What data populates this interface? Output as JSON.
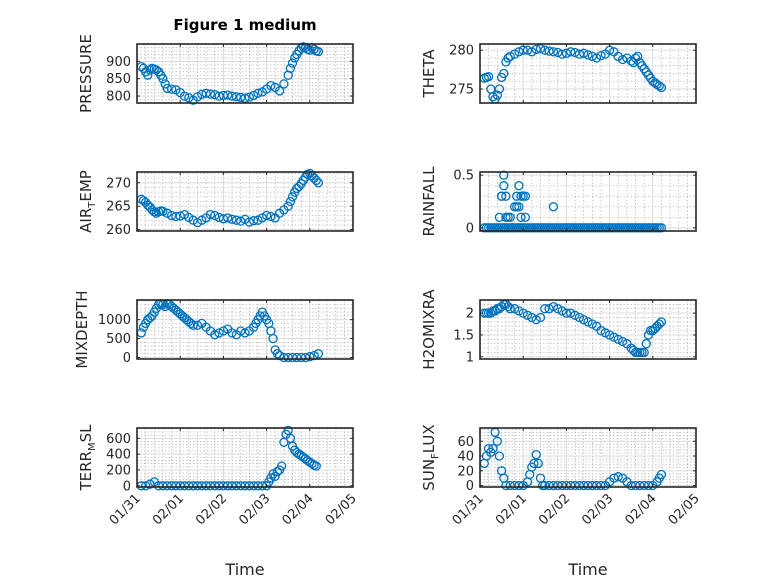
{
  "figure_title": "Figure 1 medium",
  "colors": {
    "marker": "#0072BD",
    "axis": "#262626"
  },
  "chart_data": [
    {
      "type": "scatter",
      "id": "pressure",
      "ylabel": "PRESSURE",
      "title": "Figure 1 medium",
      "ylim": [
        780,
        950
      ],
      "yticks": [
        800,
        850,
        900
      ],
      "ytick_labels": [
        "800",
        "850",
        "900"
      ],
      "xlim": [
        0,
        5
      ],
      "xticks": [
        0,
        1,
        2,
        3,
        4,
        5
      ],
      "xtick_labels": [
        "01/31",
        "02/01",
        "02/02",
        "02/03",
        "02/04",
        "02/05"
      ],
      "xlabel": "Time",
      "x": [
        0.1,
        0.15,
        0.2,
        0.25,
        0.3,
        0.35,
        0.4,
        0.45,
        0.5,
        0.55,
        0.6,
        0.65,
        0.7,
        0.8,
        0.9,
        1.0,
        1.1,
        1.2,
        1.3,
        1.4,
        1.5,
        1.6,
        1.7,
        1.8,
        1.9,
        2.0,
        2.1,
        2.2,
        2.3,
        2.4,
        2.5,
        2.6,
        2.7,
        2.8,
        2.9,
        3.0,
        3.1,
        3.2,
        3.3,
        3.4,
        3.5,
        3.55,
        3.6,
        3.65,
        3.7,
        3.75,
        3.8,
        3.85,
        3.9,
        3.95,
        4.0,
        4.05,
        4.1,
        4.15,
        4.2
      ],
      "y": [
        885,
        880,
        870,
        860,
        875,
        880,
        878,
        875,
        870,
        860,
        850,
        835,
        822,
        820,
        818,
        810,
        800,
        795,
        788,
        798,
        805,
        808,
        806,
        804,
        800,
        802,
        803,
        800,
        798,
        796,
        794,
        797,
        802,
        808,
        812,
        820,
        830,
        825,
        815,
        835,
        860,
        880,
        895,
        910,
        920,
        930,
        938,
        942,
        940,
        935,
        932,
        940,
        935,
        930,
        928
      ]
    },
    {
      "type": "scatter",
      "id": "theta",
      "ylabel": "THETA",
      "ylim": [
        273.2,
        280.8
      ],
      "yticks": [
        275,
        280
      ],
      "ytick_labels": [
        "275",
        "280"
      ],
      "xlim": [
        0,
        5
      ],
      "xticks": [
        0,
        1,
        2,
        3,
        4,
        5
      ],
      "xtick_labels": [
        "01/31",
        "02/01",
        "02/02",
        "02/03",
        "02/04",
        "02/05"
      ],
      "xlabel": "Time",
      "x": [
        0.1,
        0.15,
        0.2,
        0.25,
        0.3,
        0.35,
        0.4,
        0.45,
        0.5,
        0.55,
        0.6,
        0.65,
        0.7,
        0.8,
        0.9,
        1.0,
        1.1,
        1.2,
        1.3,
        1.4,
        1.5,
        1.6,
        1.7,
        1.8,
        1.9,
        2.0,
        2.1,
        2.2,
        2.3,
        2.4,
        2.5,
        2.6,
        2.7,
        2.8,
        2.9,
        3.0,
        3.1,
        3.2,
        3.3,
        3.4,
        3.5,
        3.55,
        3.6,
        3.65,
        3.7,
        3.75,
        3.8,
        3.85,
        3.9,
        3.95,
        4.0,
        4.05,
        4.1,
        4.15,
        4.2
      ],
      "y": [
        276.4,
        276.5,
        276.6,
        275.0,
        274.0,
        273.7,
        274.2,
        275.0,
        276.5,
        277.0,
        278.5,
        279.0,
        279.2,
        279.5,
        279.8,
        280.0,
        280.0,
        279.8,
        280.1,
        280.2,
        280.0,
        279.9,
        279.8,
        279.7,
        279.5,
        279.6,
        279.8,
        279.7,
        279.5,
        279.6,
        279.4,
        279.2,
        279.0,
        279.3,
        279.5,
        280.0,
        279.8,
        279.2,
        278.8,
        279.0,
        278.6,
        278.4,
        279.0,
        279.2,
        278.4,
        278.0,
        277.6,
        277.2,
        276.8,
        276.4,
        276.0,
        275.8,
        275.6,
        275.4,
        275.2
      ]
    },
    {
      "type": "scatter",
      "id": "air_temp",
      "ylabel_main": "AIR",
      "ylabel_sub": "T",
      "ylabel_end": "EMP",
      "ylim": [
        259.7,
        272.3
      ],
      "yticks": [
        260,
        265,
        270
      ],
      "ytick_labels": [
        "260",
        "265",
        "270"
      ],
      "xlim": [
        0,
        5
      ],
      "xticks": [
        0,
        1,
        2,
        3,
        4,
        5
      ],
      "xtick_labels": [
        "01/31",
        "02/01",
        "02/02",
        "02/03",
        "02/04",
        "02/05"
      ],
      "xlabel": "Time",
      "x": [
        0.1,
        0.15,
        0.2,
        0.25,
        0.3,
        0.35,
        0.4,
        0.45,
        0.5,
        0.55,
        0.6,
        0.7,
        0.8,
        0.9,
        1.0,
        1.1,
        1.2,
        1.3,
        1.4,
        1.5,
        1.6,
        1.7,
        1.8,
        1.9,
        2.0,
        2.1,
        2.2,
        2.3,
        2.4,
        2.5,
        2.6,
        2.7,
        2.8,
        2.9,
        3.0,
        3.1,
        3.2,
        3.3,
        3.4,
        3.5,
        3.55,
        3.6,
        3.65,
        3.7,
        3.75,
        3.8,
        3.85,
        3.9,
        3.95,
        4.0,
        4.05,
        4.1,
        4.15,
        4.2
      ],
      "y": [
        266.5,
        266.2,
        265.8,
        265.2,
        264.8,
        264.2,
        263.8,
        263.5,
        263.8,
        264.0,
        263.9,
        263.5,
        263.0,
        262.8,
        262.9,
        263.2,
        262.6,
        262.0,
        261.5,
        262.0,
        262.5,
        263.2,
        263.0,
        262.6,
        262.3,
        262.5,
        262.2,
        262.0,
        261.8,
        262.2,
        261.6,
        261.9,
        262.0,
        262.5,
        263.0,
        262.8,
        262.5,
        263.5,
        264.2,
        265.0,
        266.0,
        267.0,
        268.0,
        268.8,
        269.2,
        269.8,
        270.5,
        271.2,
        271.8,
        272.0,
        271.5,
        271.0,
        270.5,
        270.0
      ]
    },
    {
      "type": "scatter",
      "id": "rainfall",
      "ylabel": "RAINFALL",
      "ylim": [
        -0.03,
        0.53
      ],
      "yticks": [
        0,
        0.5
      ],
      "ytick_labels": [
        "0",
        "0.5"
      ],
      "xlim": [
        0,
        5
      ],
      "xticks": [
        0,
        1,
        2,
        3,
        4,
        5
      ],
      "xtick_labels": [
        "01/31",
        "02/01",
        "02/02",
        "02/03",
        "02/04",
        "02/05"
      ],
      "xlabel": "Time",
      "x": [
        0.1,
        0.15,
        0.2,
        0.25,
        0.3,
        0.35,
        0.4,
        0.45,
        0.5,
        0.55,
        0.6,
        0.65,
        0.7,
        0.75,
        0.8,
        0.85,
        0.9,
        0.95,
        1.0,
        1.05,
        1.1,
        1.15,
        1.2,
        1.25,
        1.3,
        1.35,
        1.4,
        1.45,
        1.5,
        1.55,
        1.6,
        1.65,
        1.7,
        1.75,
        1.8,
        1.85,
        1.9,
        1.95,
        2.0,
        2.05,
        2.1,
        2.15,
        2.2,
        2.25,
        2.3,
        2.35,
        2.4,
        2.45,
        2.5,
        2.55,
        2.6,
        2.65,
        2.7,
        2.75,
        2.8,
        2.85,
        2.9,
        2.95,
        3.0,
        3.05,
        3.1,
        3.15,
        3.2,
        3.25,
        3.3,
        3.35,
        3.4,
        3.45,
        3.5,
        3.55,
        3.6,
        3.65,
        3.7,
        3.75,
        3.8,
        3.85,
        3.9,
        3.95,
        4.0,
        4.05,
        4.1,
        4.15,
        4.2,
        0.45,
        0.5,
        0.55,
        0.6,
        0.65,
        0.7,
        0.75,
        0.8,
        0.85,
        0.9,
        0.95,
        1.0,
        1.05,
        0.5,
        0.55,
        0.6,
        0.85,
        0.9,
        0.95,
        1.05,
        1.7
      ],
      "y": [
        0,
        0,
        0,
        0,
        0,
        0,
        0,
        0,
        0,
        0,
        0,
        0,
        0,
        0,
        0,
        0,
        0,
        0,
        0,
        0,
        0,
        0,
        0,
        0,
        0,
        0,
        0,
        0,
        0,
        0,
        0,
        0,
        0,
        0,
        0,
        0,
        0,
        0,
        0,
        0,
        0,
        0,
        0,
        0,
        0,
        0,
        0,
        0,
        0,
        0,
        0,
        0,
        0,
        0,
        0,
        0,
        0,
        0,
        0,
        0,
        0,
        0,
        0,
        0,
        0,
        0,
        0,
        0,
        0,
        0,
        0,
        0,
        0,
        0,
        0,
        0,
        0,
        0,
        0,
        0,
        0,
        0,
        0,
        0.1,
        0.3,
        0.5,
        0.3,
        0.1,
        0.1,
        0,
        0.2,
        0.2,
        0.4,
        0.3,
        0.3,
        0.1,
        0.3,
        0.4,
        0.1,
        0.3,
        0.2,
        0.1,
        0.3,
        0.2
      ]
    },
    {
      "type": "scatter",
      "id": "mixdepth",
      "ylabel": "MIXDEPTH",
      "ylim": [
        -40,
        1520
      ],
      "yticks": [
        0,
        500,
        1000
      ],
      "ytick_labels": [
        "0",
        "500",
        "1000"
      ],
      "xlim": [
        0,
        5
      ],
      "xticks": [
        0,
        1,
        2,
        3,
        4,
        5
      ],
      "xtick_labels": [
        "01/31",
        "02/01",
        "02/02",
        "02/03",
        "02/04",
        "02/05"
      ],
      "xlabel": "Time",
      "x": [
        0.1,
        0.15,
        0.2,
        0.25,
        0.3,
        0.35,
        0.4,
        0.45,
        0.5,
        0.55,
        0.6,
        0.65,
        0.7,
        0.75,
        0.8,
        0.85,
        0.9,
        0.95,
        1.0,
        1.05,
        1.1,
        1.15,
        1.2,
        1.25,
        1.3,
        1.4,
        1.5,
        1.6,
        1.7,
        1.8,
        1.9,
        2.0,
        2.1,
        2.2,
        2.3,
        2.4,
        2.5,
        2.6,
        2.7,
        2.75,
        2.8,
        2.85,
        2.9,
        2.95,
        3.0,
        3.05,
        3.1,
        3.15,
        3.2,
        3.25,
        3.3,
        3.4,
        3.5,
        3.6,
        3.7,
        3.8,
        3.9,
        4.0,
        4.1,
        4.2
      ],
      "y": [
        650,
        800,
        900,
        1000,
        1050,
        1100,
        1200,
        1300,
        1400,
        1420,
        1400,
        1350,
        1420,
        1400,
        1350,
        1300,
        1250,
        1200,
        1150,
        1100,
        1050,
        1000,
        950,
        900,
        850,
        850,
        900,
        800,
        700,
        600,
        650,
        700,
        750,
        650,
        600,
        700,
        650,
        700,
        800,
        900,
        1000,
        1100,
        1200,
        1100,
        1000,
        900,
        700,
        500,
        200,
        100,
        50,
        0,
        0,
        0,
        0,
        0,
        0,
        20,
        50,
        100
      ]
    },
    {
      "type": "scatter",
      "id": "h2omixra",
      "ylabel": "H2OMIXRA",
      "ylim": [
        0.95,
        2.3
      ],
      "yticks": [
        1,
        1.5,
        2
      ],
      "ytick_labels": [
        "1",
        "1.5",
        "2"
      ],
      "xlim": [
        0,
        5
      ],
      "xticks": [
        0,
        1,
        2,
        3,
        4,
        5
      ],
      "xtick_labels": [
        "01/31",
        "02/01",
        "02/02",
        "02/03",
        "02/04",
        "02/05"
      ],
      "xlabel": "Time",
      "x": [
        0.1,
        0.15,
        0.2,
        0.25,
        0.3,
        0.35,
        0.4,
        0.45,
        0.5,
        0.55,
        0.6,
        0.65,
        0.7,
        0.8,
        0.9,
        1.0,
        1.1,
        1.2,
        1.3,
        1.4,
        1.5,
        1.6,
        1.7,
        1.8,
        1.9,
        2.0,
        2.1,
        2.2,
        2.3,
        2.4,
        2.5,
        2.6,
        2.7,
        2.8,
        2.9,
        3.0,
        3.1,
        3.2,
        3.3,
        3.4,
        3.5,
        3.55,
        3.6,
        3.65,
        3.7,
        3.75,
        3.8,
        3.85,
        3.9,
        3.95,
        4.0,
        4.05,
        4.1,
        4.15,
        4.2
      ],
      "y": [
        2.0,
        2.0,
        2.0,
        2.0,
        2.05,
        2.05,
        2.1,
        2.1,
        2.15,
        2.2,
        2.2,
        2.15,
        2.1,
        2.1,
        2.05,
        2.0,
        1.95,
        1.9,
        1.85,
        1.9,
        2.1,
        2.1,
        2.15,
        2.1,
        2.05,
        2.0,
        2.0,
        1.95,
        1.9,
        1.85,
        1.8,
        1.75,
        1.7,
        1.6,
        1.55,
        1.5,
        1.45,
        1.4,
        1.35,
        1.3,
        1.2,
        1.15,
        1.1,
        1.1,
        1.1,
        1.1,
        1.1,
        1.3,
        1.5,
        1.6,
        1.6,
        1.65,
        1.7,
        1.75,
        1.8
      ]
    },
    {
      "type": "scatter",
      "id": "terr_msl",
      "ylabel_main": "TERR",
      "ylabel_sub": "M",
      "ylabel_end": "SL",
      "ylim": [
        -15,
        730
      ],
      "yticks": [
        0,
        200,
        400,
        600
      ],
      "ytick_labels": [
        "0",
        "200",
        "400",
        "600"
      ],
      "xlim": [
        0,
        5
      ],
      "xticks": [
        0,
        1,
        2,
        3,
        4,
        5
      ],
      "xtick_labels": [
        "01/31",
        "02/01",
        "02/02",
        "02/03",
        "02/04",
        "02/05"
      ],
      "xlabel": "Time",
      "x": [
        0.1,
        0.2,
        0.3,
        0.4,
        0.5,
        0.6,
        0.7,
        0.8,
        0.9,
        1.0,
        1.1,
        1.2,
        1.3,
        1.4,
        1.5,
        1.6,
        1.7,
        1.8,
        1.9,
        2.0,
        2.1,
        2.2,
        2.3,
        2.4,
        2.5,
        2.6,
        2.7,
        2.8,
        2.9,
        3.0,
        3.05,
        3.1,
        3.15,
        3.2,
        3.25,
        3.3,
        3.35,
        3.4,
        3.45,
        3.5,
        3.55,
        3.6,
        3.65,
        3.7,
        3.75,
        3.8,
        3.85,
        3.9,
        3.95,
        4.0,
        4.05,
        4.1,
        4.15
      ],
      "y": [
        0,
        0,
        20,
        50,
        0,
        0,
        0,
        0,
        0,
        0,
        0,
        0,
        0,
        0,
        0,
        0,
        0,
        0,
        0,
        0,
        0,
        0,
        0,
        0,
        0,
        0,
        0,
        0,
        0,
        0,
        50,
        100,
        150,
        120,
        180,
        200,
        250,
        550,
        650,
        700,
        600,
        500,
        450,
        420,
        400,
        380,
        360,
        340,
        320,
        300,
        280,
        260,
        250
      ]
    },
    {
      "type": "scatter",
      "id": "sun_flux",
      "ylabel_main": "SUN",
      "ylabel_sub": "F",
      "ylabel_end": "LUX",
      "ylim": [
        -2,
        78
      ],
      "yticks": [
        0,
        20,
        40,
        60
      ],
      "ytick_labels": [
        "0",
        "20",
        "40",
        "60"
      ],
      "xlim": [
        0,
        5
      ],
      "xticks": [
        0,
        1,
        2,
        3,
        4,
        5
      ],
      "xtick_labels": [
        "01/31",
        "02/01",
        "02/02",
        "02/03",
        "02/04",
        "02/05"
      ],
      "xlabel": "Time",
      "x": [
        0.1,
        0.15,
        0.2,
        0.25,
        0.3,
        0.35,
        0.4,
        0.45,
        0.5,
        0.55,
        0.6,
        0.7,
        0.8,
        0.9,
        1.0,
        1.1,
        1.15,
        1.2,
        1.25,
        1.3,
        1.35,
        1.4,
        1.45,
        1.5,
        1.6,
        1.7,
        1.8,
        1.9,
        2.0,
        2.1,
        2.2,
        2.3,
        2.4,
        2.5,
        2.6,
        2.7,
        2.8,
        2.9,
        3.0,
        3.1,
        3.2,
        3.3,
        3.4,
        3.5,
        3.6,
        3.7,
        3.8,
        3.9,
        4.0,
        4.1,
        4.15,
        4.2
      ],
      "y": [
        30,
        40,
        50,
        45,
        50,
        72,
        60,
        40,
        20,
        10,
        0,
        0,
        0,
        0,
        0,
        5,
        15,
        25,
        30,
        42,
        30,
        10,
        0,
        0,
        0,
        0,
        0,
        0,
        0,
        0,
        0,
        0,
        0,
        0,
        0,
        0,
        0,
        0,
        5,
        10,
        12,
        10,
        5,
        0,
        0,
        0,
        0,
        0,
        0,
        5,
        10,
        15
      ]
    }
  ]
}
